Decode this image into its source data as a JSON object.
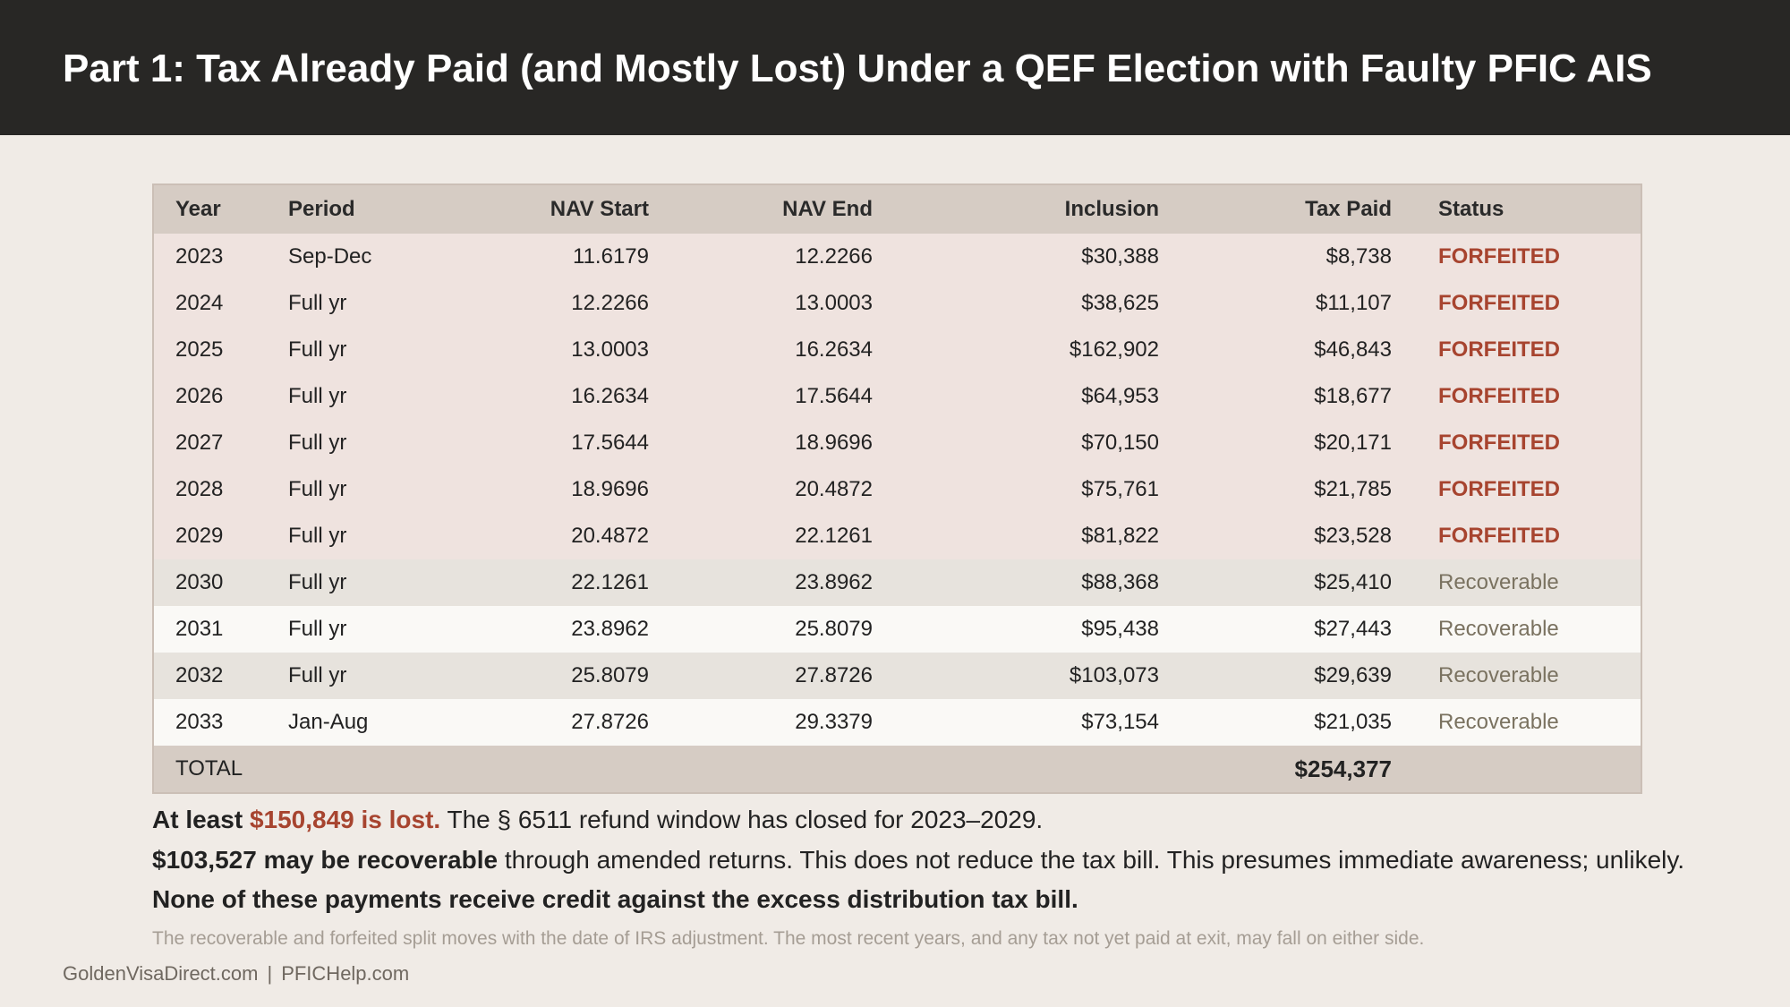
{
  "header": {
    "title": "Part 1: Tax Already Paid (and Mostly Lost) Under a QEF Election with Faulty PFIC AIS"
  },
  "table": {
    "columns": [
      "Year",
      "Period",
      "NAV Start",
      "NAV End",
      "Inclusion",
      "Tax Paid",
      "Status"
    ],
    "rows": [
      {
        "year": "2023",
        "period": "Sep-Dec",
        "nav_start": "11.6179",
        "nav_end": "12.2266",
        "inclusion": "$30,388",
        "tax_paid": "$8,738",
        "status": "FORFEITED"
      },
      {
        "year": "2024",
        "period": "Full yr",
        "nav_start": "12.2266",
        "nav_end": "13.0003",
        "inclusion": "$38,625",
        "tax_paid": "$11,107",
        "status": "FORFEITED"
      },
      {
        "year": "2025",
        "period": "Full yr",
        "nav_start": "13.0003",
        "nav_end": "16.2634",
        "inclusion": "$162,902",
        "tax_paid": "$46,843",
        "status": "FORFEITED"
      },
      {
        "year": "2026",
        "period": "Full yr",
        "nav_start": "16.2634",
        "nav_end": "17.5644",
        "inclusion": "$64,953",
        "tax_paid": "$18,677",
        "status": "FORFEITED"
      },
      {
        "year": "2027",
        "period": "Full yr",
        "nav_start": "17.5644",
        "nav_end": "18.9696",
        "inclusion": "$70,150",
        "tax_paid": "$20,171",
        "status": "FORFEITED"
      },
      {
        "year": "2028",
        "period": "Full yr",
        "nav_start": "18.9696",
        "nav_end": "20.4872",
        "inclusion": "$75,761",
        "tax_paid": "$21,785",
        "status": "FORFEITED"
      },
      {
        "year": "2029",
        "period": "Full yr",
        "nav_start": "20.4872",
        "nav_end": "22.1261",
        "inclusion": "$81,822",
        "tax_paid": "$23,528",
        "status": "FORFEITED"
      },
      {
        "year": "2030",
        "period": "Full yr",
        "nav_start": "22.1261",
        "nav_end": "23.8962",
        "inclusion": "$88,368",
        "tax_paid": "$25,410",
        "status": "Recoverable"
      },
      {
        "year": "2031",
        "period": "Full yr",
        "nav_start": "23.8962",
        "nav_end": "25.8079",
        "inclusion": "$95,438",
        "tax_paid": "$27,443",
        "status": "Recoverable"
      },
      {
        "year": "2032",
        "period": "Full yr",
        "nav_start": "25.8079",
        "nav_end": "27.8726",
        "inclusion": "$103,073",
        "tax_paid": "$29,639",
        "status": "Recoverable"
      },
      {
        "year": "2033",
        "period": "Jan-Aug",
        "nav_start": "27.8726",
        "nav_end": "29.3379",
        "inclusion": "$73,154",
        "tax_paid": "$21,035",
        "status": "Recoverable"
      }
    ],
    "total": {
      "label": "TOTAL",
      "tax_paid": "$254,377"
    }
  },
  "notes": {
    "line1_bold": "At least ",
    "line1_lost": "$150,849 is lost.",
    "line1_rest": " The § 6511 refund window has closed for 2023–2029.",
    "line2_bold": "$103,527 may be recoverable",
    "line2_rest": " through amended returns. This does not reduce the tax bill. This presumes immediate awareness; unlikely.",
    "line3": "None of these payments receive credit against the excess distribution tax bill."
  },
  "footnote": "The recoverable and forfeited split moves with the date of IRS adjustment. The most recent years, and any tax not yet paid at exit, may fall on either side.",
  "footer": {
    "site1": "GoldenVisaDirect.com",
    "separator": "|",
    "site2": "PFICHelp.com"
  },
  "colors": {
    "header_bg": "#282725",
    "page_bg": "#f0ebe6",
    "forfeited": "#a7442f",
    "recoverable": "#7a7260",
    "table_header_bg": "#d6ccc4"
  }
}
